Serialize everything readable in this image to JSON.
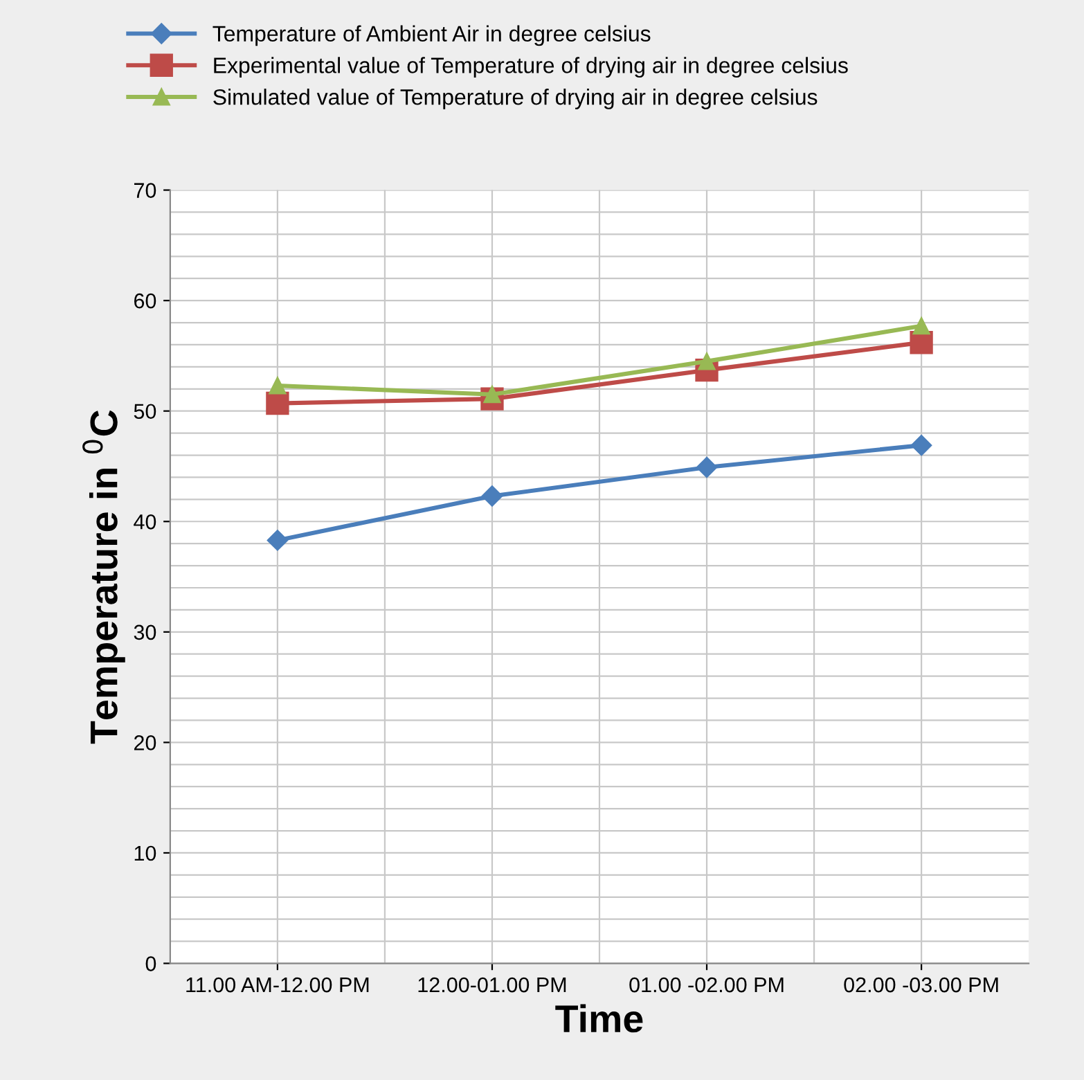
{
  "chart_data": {
    "type": "line",
    "xlabel": "Time",
    "ylabel": "Temperature in $^{0}$C",
    "categories": [
      "11.00 AM-12.00 PM",
      "12.00-01.00 PM",
      "01.00 -02.00 PM",
      "02.00 -03.00 PM"
    ],
    "series": [
      {
        "name": "Temperature of Ambient Air in degree celsius",
        "color": "#4a7ebb",
        "marker": "diamond",
        "values": [
          38.3,
          42.3,
          44.9,
          46.9
        ]
      },
      {
        "name": "Experimental value of Temperature of drying air in degree celsius",
        "color": "#be4b48",
        "marker": "square",
        "values": [
          50.7,
          51.1,
          53.7,
          56.2
        ]
      },
      {
        "name": "Simulated value of Temperature of drying air in degree celsius",
        "color": "#98b954",
        "marker": "triangle",
        "values": [
          52.3,
          51.5,
          54.5,
          57.7
        ]
      }
    ],
    "ylim": [
      0,
      70
    ],
    "yticks": [
      0,
      10,
      20,
      30,
      40,
      50,
      60,
      70
    ],
    "grid": true,
    "legend": "top left",
    "line_style": "solid"
  }
}
